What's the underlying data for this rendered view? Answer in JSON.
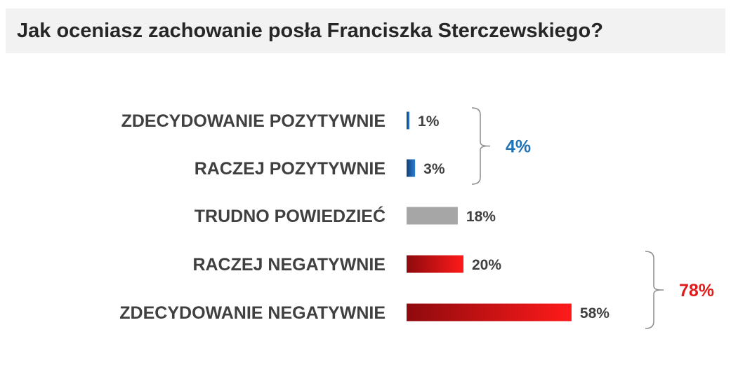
{
  "title": "Jak oceniasz zachowanie posła Franciszka Sterczewskiego?",
  "chart_data": {
    "type": "bar",
    "orientation": "horizontal",
    "title": "Jak oceniasz zachowanie posła Franciszka Sterczewskiego?",
    "categories": [
      "ZDECYDOWANIE POZYTYWNIE",
      "RACZEJ POZYTYWNIE",
      "TRUDNO POWIEDZIEĆ",
      "RACZEJ NEGATYWNIE",
      "ZDECYDOWANIE NEGATYWNIE"
    ],
    "values": [
      1,
      3,
      18,
      20,
      58
    ],
    "value_labels": [
      "1%",
      "3%",
      "18%",
      "20%",
      "58%"
    ],
    "unit": "%",
    "colors": [
      "#1f5fa8",
      "#1f5fa8",
      "#a6a6a6",
      "#e8161b",
      "#c40b0f"
    ],
    "groups": [
      {
        "label": "4%",
        "from": 0,
        "to": 1,
        "color": "#1f73b7"
      },
      {
        "label": "78%",
        "from": 3,
        "to": 4,
        "color": "#e01b1b"
      }
    ],
    "xlim": [
      0,
      58
    ],
    "grid": false,
    "legend": "none"
  }
}
